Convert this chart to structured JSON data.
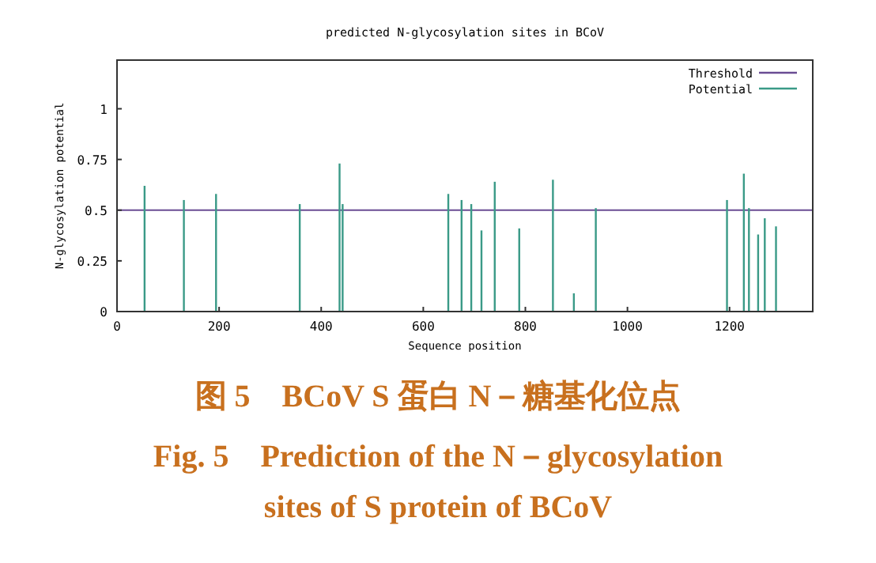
{
  "chart_data": {
    "type": "bar",
    "title": "predicted N-glycosylation sites in BCoV",
    "xlabel": "Sequence position",
    "ylabel": "N-glycosylation potential",
    "xlim": [
      0,
      1363
    ],
    "xticks": [
      0,
      200,
      400,
      600,
      800,
      1000,
      1200
    ],
    "ylim": [
      0,
      1.24
    ],
    "yticks": [
      0,
      0.25,
      0.5,
      0.75,
      1
    ],
    "ref_lines": [
      {
        "axis": "y",
        "value": 0.5,
        "label": "Threshold",
        "color": "#6a4c93"
      }
    ],
    "series": [
      {
        "name": "Potential",
        "color": "#3a9a87",
        "x": [
          54,
          131,
          194,
          358,
          436,
          442,
          649,
          675,
          694,
          714,
          740,
          788,
          854,
          895,
          938,
          1195,
          1228,
          1238,
          1256,
          1269,
          1291
        ],
        "values": [
          0.62,
          0.55,
          0.58,
          0.53,
          0.73,
          0.53,
          0.58,
          0.55,
          0.53,
          0.4,
          0.64,
          0.41,
          0.65,
          0.09,
          0.51,
          0.55,
          0.68,
          0.51,
          0.38,
          0.46,
          0.42
        ]
      }
    ],
    "legend": "top right",
    "grid": false,
    "annotations": [
      "图 5　BCoV S 蛋白 N－糖基化位点",
      "Fig. 5　Prediction of the N－glycosylation sites of S protein of BCoV"
    ]
  }
}
